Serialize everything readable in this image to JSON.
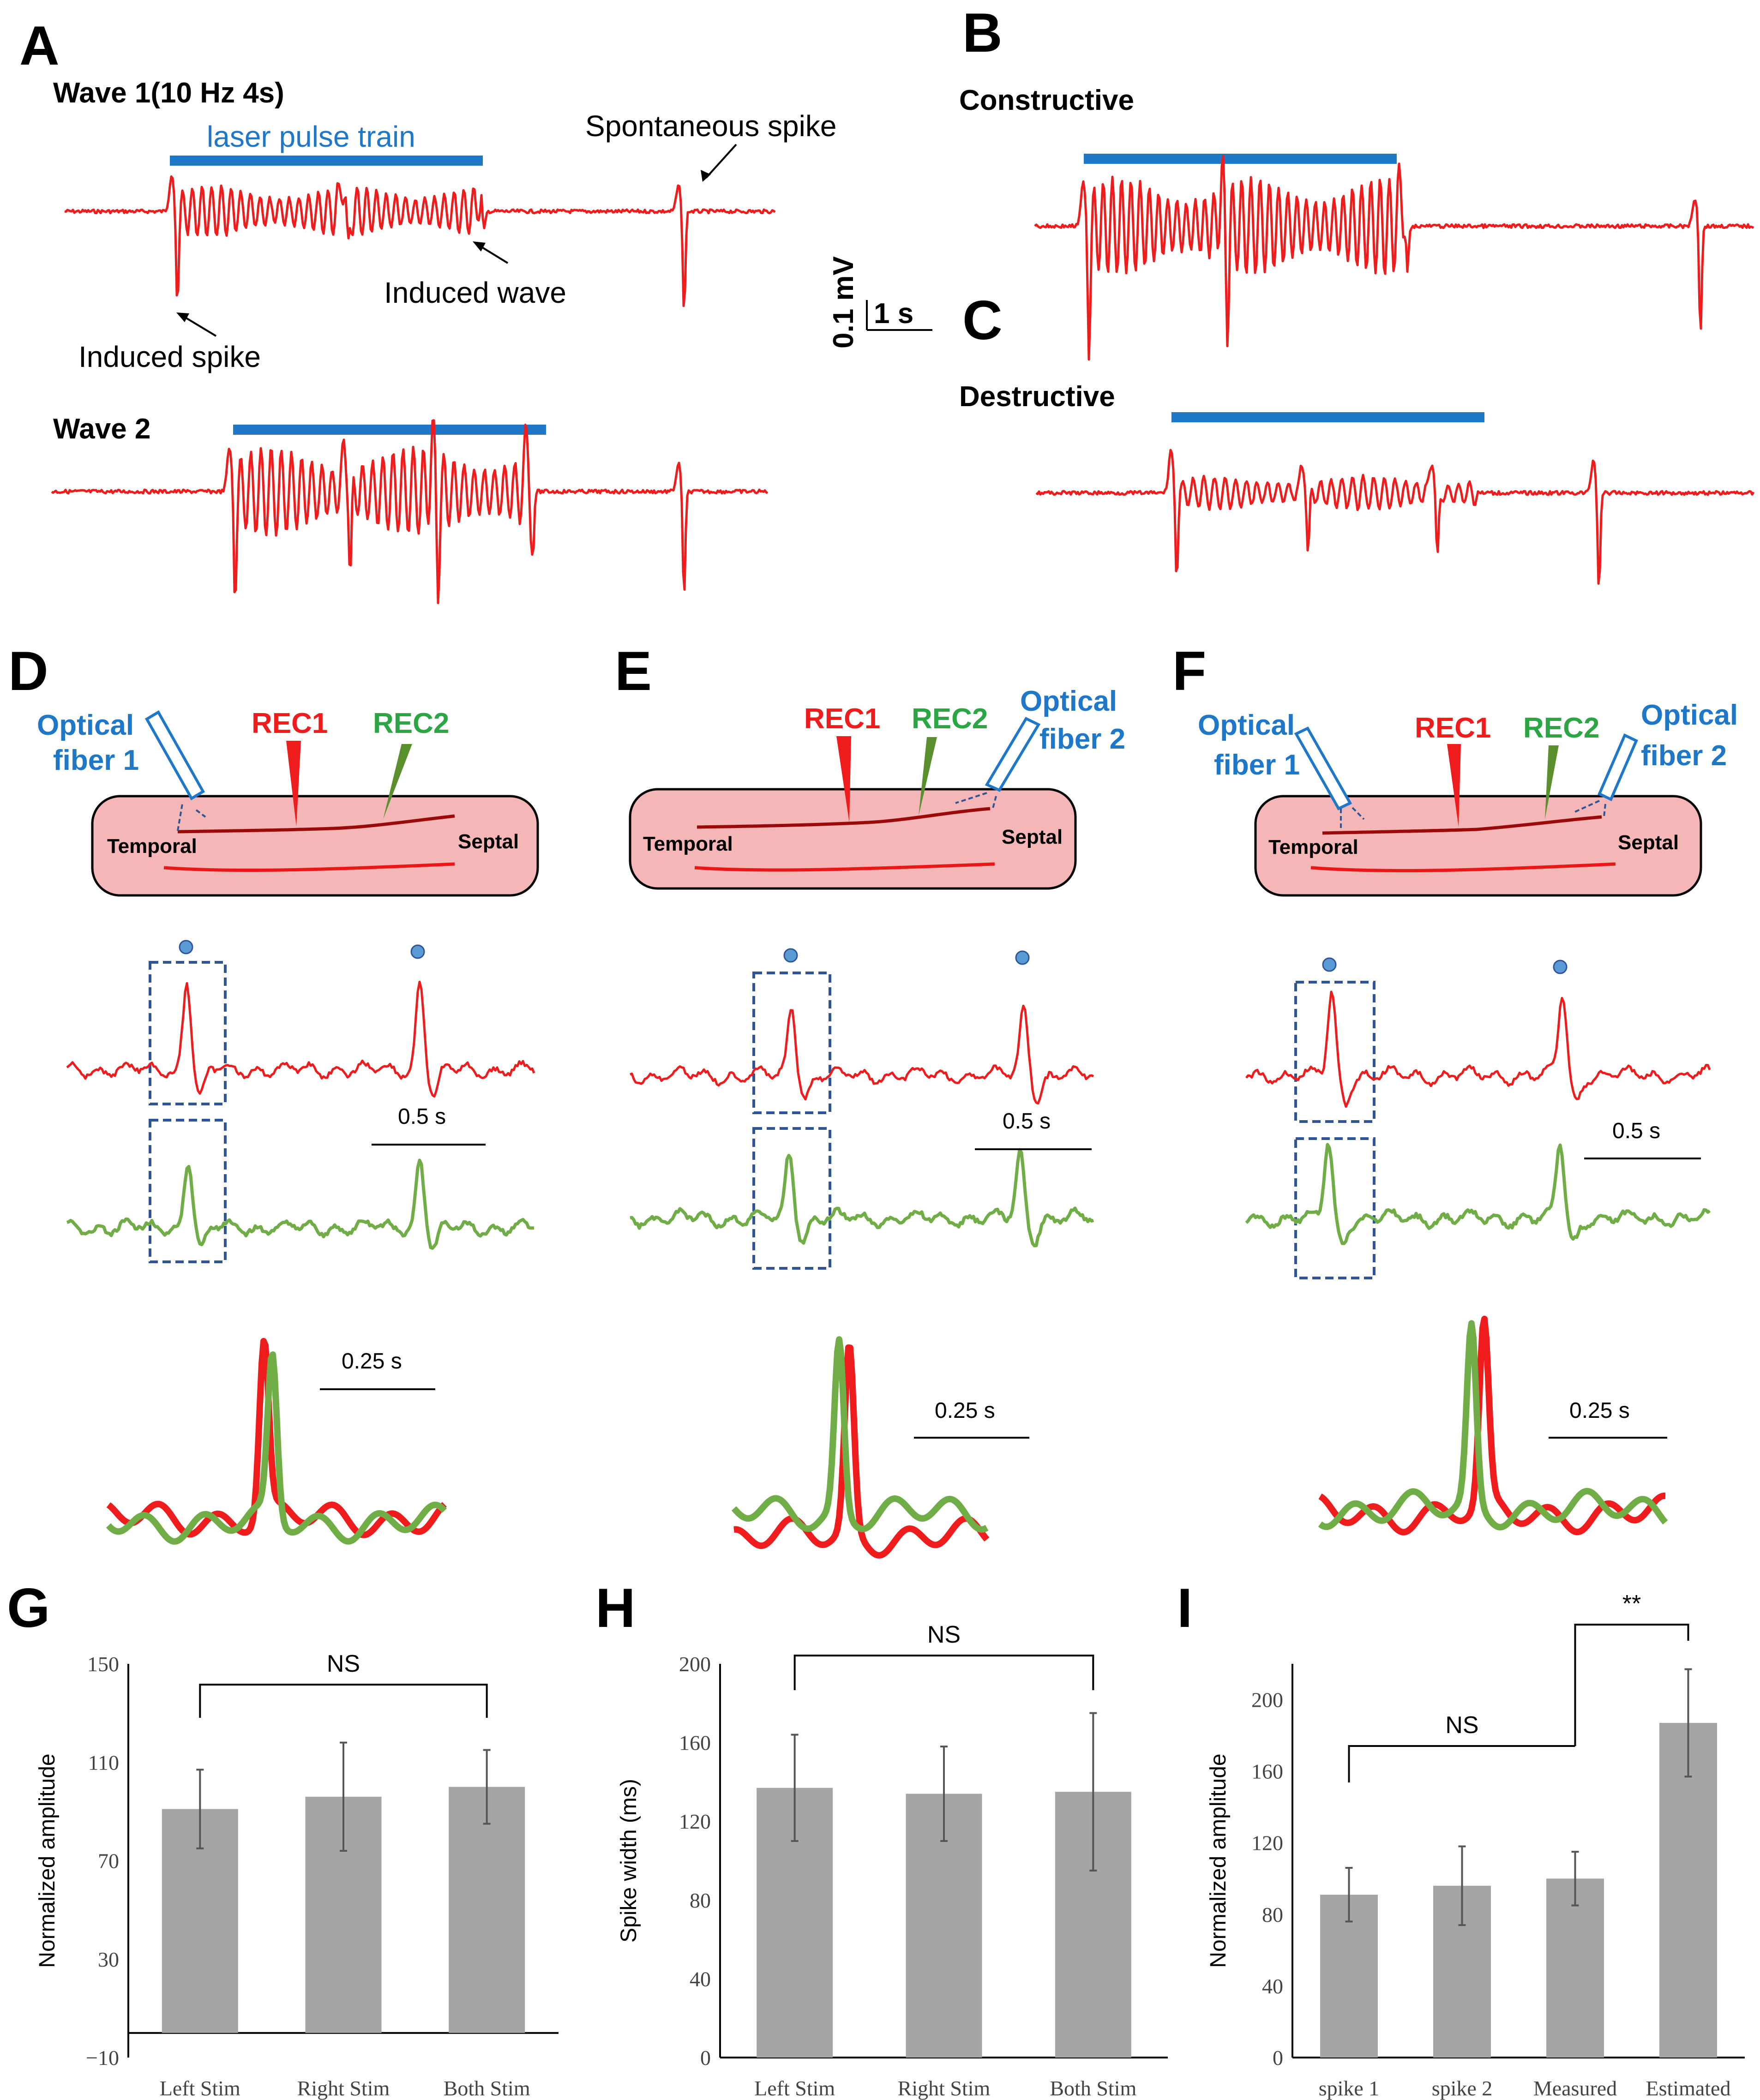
{
  "panels": {
    "A": {
      "letter": "A",
      "wave1_title": "Wave 1(10 Hz 4s)",
      "wave2_title": "Wave 2",
      "laser_label": "laser pulse train",
      "spontaneous_label": "Spontaneous spike",
      "induced_wave_label": "Induced wave",
      "induced_spike_label": "Induced spike"
    },
    "B": {
      "letter": "B",
      "title": "Constructive"
    },
    "C": {
      "letter": "C",
      "title": "Destructive"
    },
    "scalebar": {
      "voltage": "0.1 mV",
      "time": "1 s"
    },
    "D": {
      "letter": "D",
      "fiber1": [
        "Optical",
        "fiber 1"
      ],
      "rec1": "REC1",
      "rec2": "REC2",
      "temporal": "Temporal",
      "septal": "Septal",
      "scale1": "0.5 s",
      "scale2": "0.25 s"
    },
    "E": {
      "letter": "E",
      "fiber2": [
        "Optical",
        "fiber 2"
      ],
      "rec1": "REC1",
      "rec2": "REC2",
      "temporal": "Temporal",
      "septal": "Septal",
      "scale1": "0.5 s",
      "scale2": "0.25 s"
    },
    "F": {
      "letter": "F",
      "fiber1": [
        "Optical",
        "fiber 1"
      ],
      "fiber2": [
        "Optical",
        "fiber 2"
      ],
      "rec1": "REC1",
      "rec2": "REC2",
      "temporal": "Temporal",
      "septal": "Septal",
      "scale1": "0.5 s",
      "scale2": "0.25 s"
    },
    "G": {
      "letter": "G"
    },
    "H": {
      "letter": "H"
    },
    "I": {
      "letter": "I"
    }
  },
  "colors": {
    "red": "#ee1c1c",
    "green": "#70ad47",
    "blue": "#1f77c8",
    "bar": "#a6a4a4"
  },
  "chart_data": [
    {
      "panel": "G",
      "type": "bar",
      "categories": [
        "Left Stim",
        "Right Stim",
        "Both Stim"
      ],
      "values": [
        91,
        96,
        100
      ],
      "errors": [
        16,
        22,
        15
      ],
      "ylabel": "Normalized amplitude",
      "ylim": [
        -10,
        150
      ],
      "yticks": [
        "150",
        "110",
        "70",
        "30",
        "−10"
      ],
      "significance": [
        {
          "from": 0,
          "to": 2,
          "label": "NS"
        }
      ]
    },
    {
      "panel": "H",
      "type": "bar",
      "categories": [
        "Left Stim",
        "Right Stim",
        "Both Stim"
      ],
      "values": [
        137,
        134,
        135
      ],
      "errors": [
        27,
        24,
        40
      ],
      "ylabel": "Spike width (ms)",
      "ylim": [
        0,
        200
      ],
      "yticks": [
        "200",
        "160",
        "120",
        "80",
        "40",
        "0"
      ],
      "significance": [
        {
          "from": 0,
          "to": 2,
          "label": "NS"
        }
      ]
    },
    {
      "panel": "I",
      "type": "bar",
      "categories": [
        "spike 1",
        "spike 2",
        "Measured",
        "Estimated"
      ],
      "values": [
        91,
        96,
        100,
        187
      ],
      "errors": [
        15,
        22,
        15,
        30
      ],
      "ylabel": "Normalized amplitude",
      "ylim": [
        0,
        220
      ],
      "yticks": [
        "200",
        "160",
        "120",
        "80",
        "40",
        "0"
      ],
      "significance": [
        {
          "from": 0,
          "to": 2,
          "label": "NS"
        },
        {
          "from": 2,
          "to": 3,
          "label": "**"
        }
      ]
    }
  ]
}
